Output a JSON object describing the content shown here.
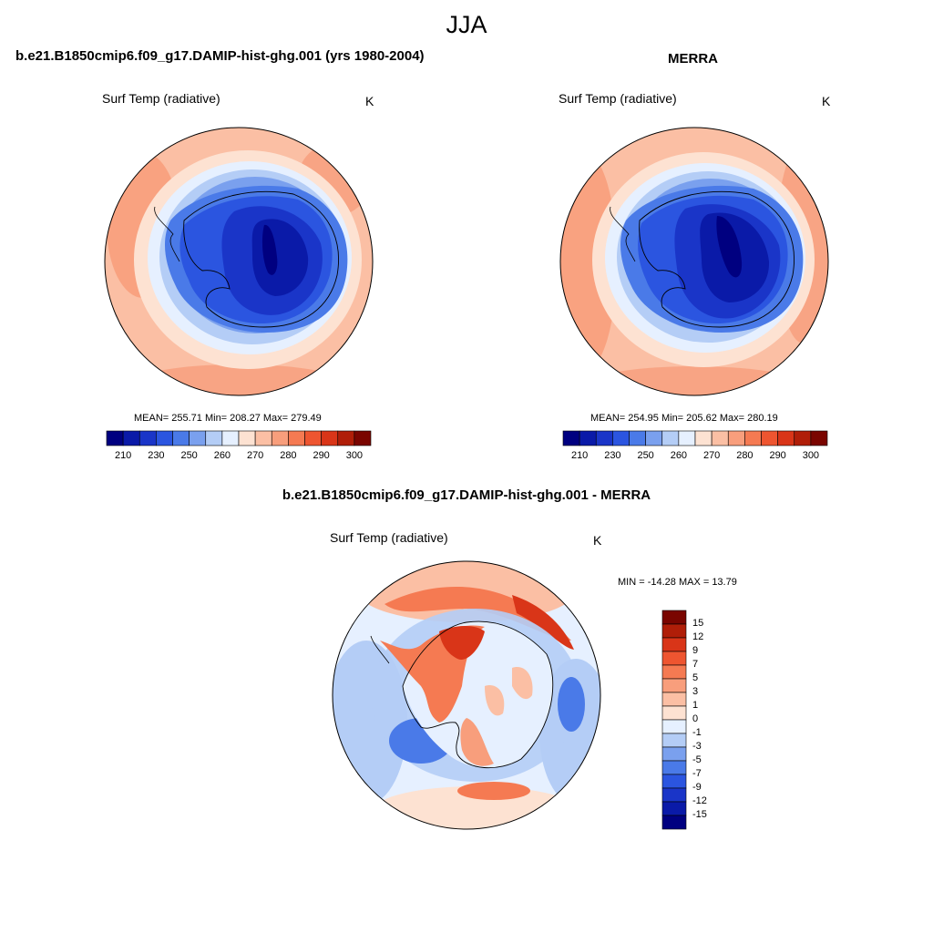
{
  "season": "JJA",
  "variable": "Surf Temp (radiative)",
  "units": "K",
  "panels": {
    "model": {
      "title": "b.e21.B1850cmip6.f09_g17.DAMIP-hist-ghg.001 (yrs 1980-2004)",
      "stats": "MEAN= 255.71  Min= 208.27  Max= 279.49"
    },
    "obs": {
      "title": "MERRA",
      "stats": "MEAN= 254.95  Min= 205.62  Max= 280.19"
    },
    "diff": {
      "title": "b.e21.B1850cmip6.f09_g17.DAMIP-hist-ghg.001 - MERRA",
      "stats": "MIN = -14.28 MAX =  13.79"
    }
  },
  "abs_colorbar": {
    "colors": [
      "#000080",
      "#0a1aa8",
      "#1a35c8",
      "#2b55e0",
      "#4a7ae8",
      "#7aa0ee",
      "#b4cdf6",
      "#e6f0ff",
      "#fde2d2",
      "#fbbfa4",
      "#f89e7c",
      "#f57a52",
      "#ee5530",
      "#d93518",
      "#b01e08",
      "#7a0500"
    ],
    "labels": [
      "210",
      "230",
      "250",
      "260",
      "270",
      "280",
      "290",
      "300"
    ]
  },
  "diff_colorbar": {
    "colors": [
      "#7a0500",
      "#b01e08",
      "#d93518",
      "#ee5530",
      "#f57a52",
      "#f89e7c",
      "#fbbfa4",
      "#fde2d2",
      "#e6f0ff",
      "#b4cdf6",
      "#7aa0ee",
      "#4a7ae8",
      "#2b55e0",
      "#1a35c8",
      "#0a1aa8",
      "#000080"
    ],
    "labels": [
      "15",
      "12",
      "9",
      "7",
      "5",
      "3",
      "1",
      "0",
      "-1",
      "-3",
      "-5",
      "-7",
      "-9",
      "-12",
      "-15"
    ]
  }
}
